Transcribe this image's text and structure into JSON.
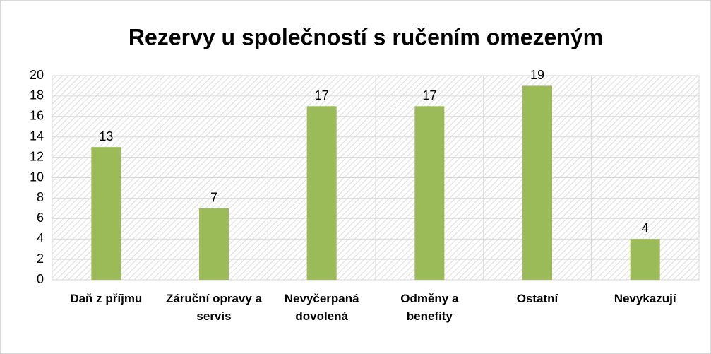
{
  "chart_data": {
    "type": "bar",
    "title": "Rezervy u společností s ručením omezeným",
    "categories": [
      "Daň z příjmu",
      "Záruční opravy a servis",
      "Nevyčerpaná dovolená",
      "Odměny a benefity",
      "Ostatní",
      "Nevykazují"
    ],
    "values": [
      13,
      7,
      17,
      17,
      19,
      4
    ],
    "color": "#9bbb59",
    "ylim": [
      0,
      20
    ],
    "yticks": [
      0,
      2,
      4,
      6,
      8,
      10,
      12,
      14,
      16,
      18,
      20
    ],
    "grid": true
  }
}
